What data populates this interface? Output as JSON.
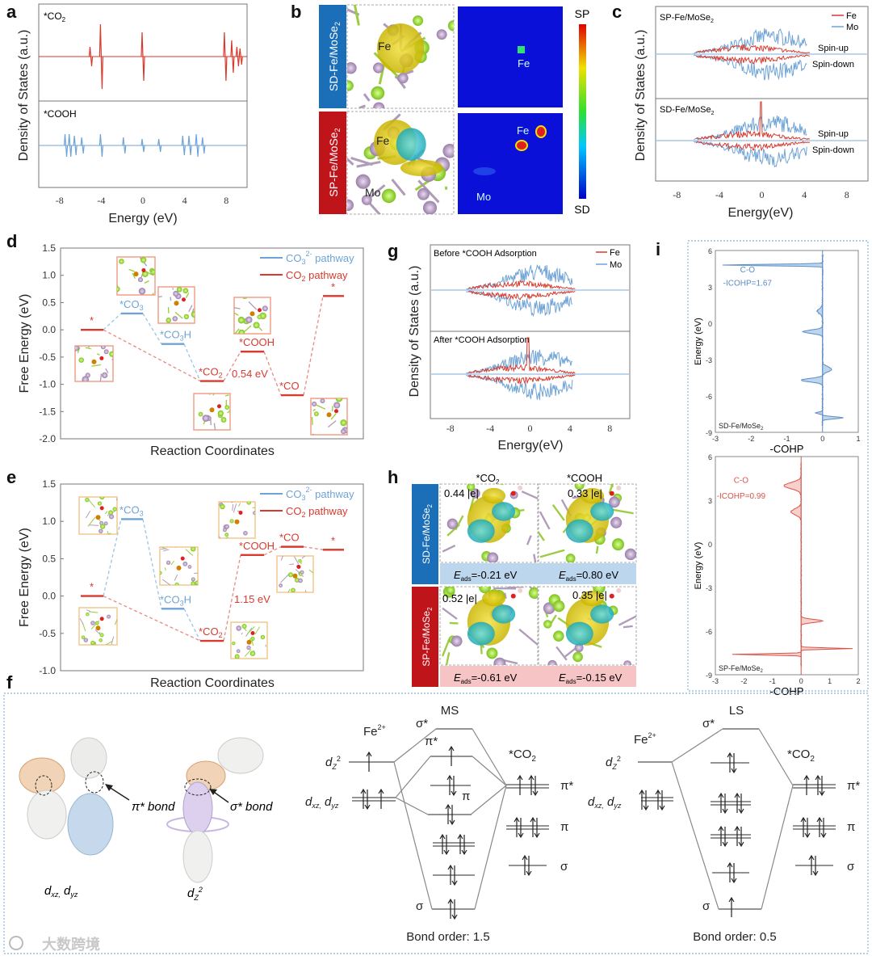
{
  "panels": {
    "a": "a",
    "b": "b",
    "c": "c",
    "d": "d",
    "e": "e",
    "f": "f",
    "g": "g",
    "h": "h",
    "i": "i"
  },
  "colors": {
    "red": "#d83a2e",
    "blue": "#6fa3d6",
    "dark_blue": "#1b6fb8",
    "dark_red": "#c0141b"
  },
  "panel_a": {
    "ylabel": "Density of States (a.u.)",
    "xlabel": "Energy (eV)",
    "top_label": {
      "text": "*CO",
      "sub": "2"
    },
    "bottom_label": "*COOH",
    "xticks": [
      "-8",
      "-4",
      "0",
      "4",
      "8"
    ]
  },
  "panel_b": {
    "row1": {
      "text": "SD-Fe/MoSe",
      "sub": "2"
    },
    "row2": {
      "text": "SP-Fe/MoSe",
      "sub": "2"
    },
    "fe": "Fe",
    "mo": "Mo",
    "cbar_top": "SP",
    "cbar_bottom": "SD"
  },
  "panel_c": {
    "ylabel": "Density of States (a.u.)",
    "xlabel": "Energy(eV)",
    "top": {
      "text": "SP-Fe/MoSe",
      "sub": "2"
    },
    "bottom": {
      "text": "SD-Fe/MoSe",
      "sub": "2"
    },
    "legend": [
      "Fe",
      "Mo"
    ],
    "spin_up": "Spin-up",
    "spin_down": "Spin-down",
    "xticks": [
      "-8",
      "-4",
      "0",
      "4",
      "8"
    ]
  },
  "chart_data": [
    {
      "id": "d",
      "type": "line",
      "title": "",
      "xlabel": "Reaction Coordinates",
      "ylabel": "Free Energy (eV)",
      "ylim": [
        -2.0,
        1.5
      ],
      "yticks": [
        "1.5",
        "1.0",
        "0.5",
        "0.0",
        "-0.5",
        "-1.0",
        "-1.5",
        "-2.0"
      ],
      "legend": [
        {
          "text": "CO",
          "sub": "3",
          "sup": "2-",
          "tail": " pathway",
          "series": "CO3"
        },
        {
          "text": "CO",
          "sub": "2",
          "sup": "",
          "tail": "  pathway",
          "series": "CO2"
        }
      ],
      "levels": [
        {
          "label": "*",
          "sub": "",
          "tail": "",
          "value": 0.0,
          "series": "CO2"
        },
        {
          "label": "*CO",
          "sub": "3",
          "tail": "",
          "value": 0.3,
          "series": "CO3"
        },
        {
          "label": "*CO",
          "sub": "3",
          "tail": "H",
          "value": -0.26,
          "series": "CO3"
        },
        {
          "label": "*CO",
          "sub": "2",
          "tail": "",
          "value": -0.94,
          "series": "CO2"
        },
        {
          "label": "*COOH",
          "sub": "",
          "tail": "",
          "value": -0.4,
          "series": "CO2"
        },
        {
          "label": "*CO",
          "sub": "",
          "tail": "",
          "value": -1.2,
          "series": "CO2"
        },
        {
          "label": "*",
          "sub": "",
          "tail": "",
          "value": 0.62,
          "series": "CO2"
        }
      ],
      "annotation": "0.54 eV"
    },
    {
      "id": "e",
      "type": "line",
      "title": "",
      "xlabel": "Reaction Coordinates",
      "ylabel": "Free Energy (eV)",
      "ylim": [
        -1.0,
        1.5
      ],
      "yticks": [
        "1.5",
        "1.0",
        "0.5",
        "0.0",
        "-0.5",
        "-1.0"
      ],
      "legend": [
        {
          "text": "CO",
          "sub": "3",
          "sup": "2-",
          "tail": " pathway",
          "series": "CO3"
        },
        {
          "text": "CO",
          "sub": "2",
          "sup": "",
          "tail": "  pathway",
          "series": "CO2"
        }
      ],
      "levels": [
        {
          "label": "*",
          "sub": "",
          "tail": "",
          "value": 0.0,
          "series": "CO2"
        },
        {
          "label": "*CO",
          "sub": "3",
          "tail": "",
          "value": 1.03,
          "series": "CO3"
        },
        {
          "label": "*CO",
          "sub": "3",
          "tail": "H",
          "value": -0.17,
          "series": "CO3"
        },
        {
          "label": "*CO",
          "sub": "2",
          "tail": "",
          "value": -0.6,
          "series": "CO2"
        },
        {
          "label": "*COOH",
          "sub": "",
          "tail": "",
          "value": 0.55,
          "series": "CO2"
        },
        {
          "label": "*CO",
          "sub": "",
          "tail": "",
          "value": 0.66,
          "series": "CO2"
        },
        {
          "label": "*",
          "sub": "",
          "tail": "",
          "value": 0.62,
          "series": "CO2"
        }
      ],
      "annotation": "1.15 eV"
    },
    {
      "id": "i",
      "type": "area",
      "xlabel": "-COHP",
      "ylabel": "Energy (eV)",
      "yticks": [
        "6",
        "3",
        "0",
        "-3",
        "-6",
        "-9"
      ],
      "top": {
        "xlim": [
          -3,
          1
        ],
        "xticks": [
          "-3",
          "-2",
          "-1",
          "0",
          "1"
        ],
        "bond": "C-O",
        "icohp": "-ICOHP=1.67",
        "system": {
          "text": "SD-Fe/MoSe",
          "sub": "2"
        }
      },
      "bottom": {
        "xlim": [
          -3,
          2
        ],
        "xticks": [
          "-3",
          "-2",
          "-1",
          "0",
          "1",
          "2"
        ],
        "bond": "C-O",
        "icohp": "-ICOHP=0.99",
        "system": {
          "text": "SP-Fe/MoSe",
          "sub": "2"
        }
      }
    }
  ],
  "panel_g": {
    "ylabel": "Density of States (a.u.)",
    "xlabel": "Energy(eV)",
    "top": "Before *COOH Adsorption",
    "bottom": "After *COOH Adsorption",
    "legend": [
      "Fe",
      "Mo"
    ],
    "xticks": [
      "-8",
      "-4",
      "0",
      "4",
      "8"
    ]
  },
  "panel_h": {
    "col1": {
      "text": "*CO",
      "sub": "2"
    },
    "col2": {
      "text": "*COOH",
      "sub": ""
    },
    "row1": {
      "text": "SD-Fe/MoSe",
      "sub": "2"
    },
    "row2": {
      "text": "SP-Fe/MoSe",
      "sub": "2"
    },
    "charges": [
      "0.44 |e|",
      "0.33 |e|",
      "0.52 |e|",
      "0.35 |e|"
    ],
    "eads": [
      "=-0.21 eV",
      "=0.80 eV",
      "=-0.61 eV",
      "=-0.15 eV"
    ],
    "e_sym": "E",
    "e_sub": "ads"
  },
  "panel_f": {
    "pi_bond": "π* bond",
    "sigma_bond": "σ* bond",
    "dxz": "d",
    "dxz_sub": "xz,",
    "dyz": " d",
    "dyz_sub": "yz",
    "dz": "d",
    "dz_sub": "Z",
    "dz_sup": "2",
    "ms": {
      "title": "MS",
      "bond_order": "Bond order: 1.5"
    },
    "ls": {
      "title": "LS",
      "bond_order": "Bond order: 0.5"
    },
    "fe": "Fe",
    "fe_sup": "2+",
    "co2": "*CO",
    "co2_sub": "2",
    "sigma_star": "σ*",
    "pi_star": "π*",
    "pi": "π",
    "sigma": "σ"
  },
  "watermark": "大数跨境"
}
